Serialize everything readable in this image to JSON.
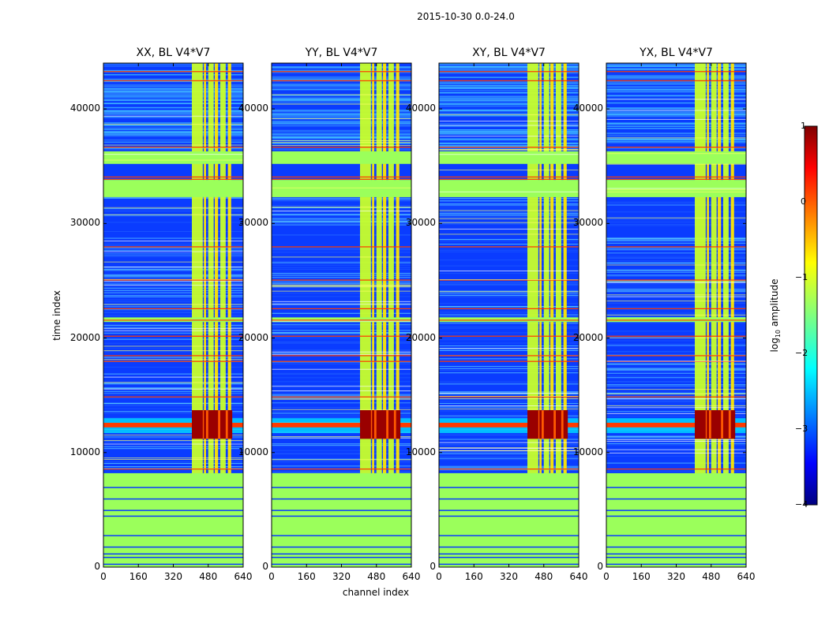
{
  "suptitle": "2015-10-30 0.0-24.0",
  "chart_data": [
    {
      "type": "heatmap",
      "title": "XX, BL V4*V7",
      "xlabel": "",
      "ylabel": "time index",
      "xlim": [
        0,
        640
      ],
      "ylim": [
        0,
        44000
      ],
      "xticks": [
        "0",
        "160",
        "320",
        "480",
        "640"
      ],
      "yticks": [
        "0",
        "10000",
        "20000",
        "30000",
        "40000"
      ]
    },
    {
      "type": "heatmap",
      "title": "YY, BL V4*V7",
      "xlabel": "channel index",
      "ylabel": "",
      "xlim": [
        0,
        640
      ],
      "ylim": [
        0,
        44000
      ],
      "xticks": [
        "0",
        "160",
        "320",
        "480",
        "640"
      ],
      "yticks": [
        "0",
        "10000",
        "20000",
        "30000",
        "40000"
      ]
    },
    {
      "type": "heatmap",
      "title": "XY, BL V4*V7",
      "xlabel": "",
      "ylabel": "",
      "xlim": [
        0,
        640
      ],
      "ylim": [
        0,
        44000
      ],
      "xticks": [
        "0",
        "160",
        "320",
        "480",
        "640"
      ],
      "yticks": [
        "0",
        "10000",
        "20000",
        "30000",
        "40000"
      ]
    },
    {
      "type": "heatmap",
      "title": "YX, BL V4*V7",
      "xlabel": "",
      "ylabel": "",
      "xlim": [
        0,
        640
      ],
      "ylim": [
        0,
        44000
      ],
      "xticks": [
        "0",
        "160",
        "320",
        "480",
        "640"
      ],
      "yticks": [
        "0",
        "10000",
        "20000",
        "30000",
        "40000"
      ]
    }
  ],
  "colorbar": {
    "label_prefix": "log",
    "label_sub": "10",
    "label_suffix": " amplitude",
    "range": [
      -4,
      1
    ],
    "ticks": [
      "1",
      "0",
      "−1",
      "−2",
      "−3",
      "−4"
    ],
    "colormap": "jet"
  },
  "colors": {
    "background_blue": "#0a3cff",
    "flag_green": "#9bff5b",
    "rfi_red": "#ff3a00",
    "axis": "#000000"
  }
}
